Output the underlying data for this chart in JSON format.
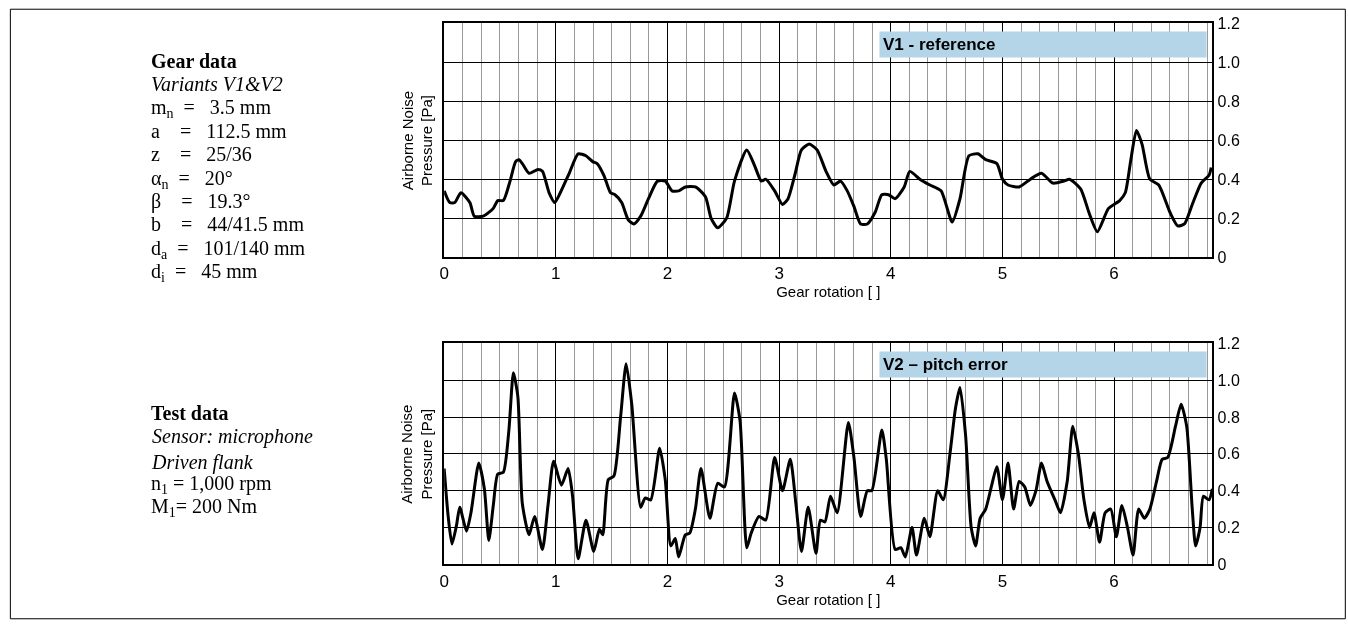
{
  "chart_data": [
    {
      "type": "other",
      "title": "Gear data",
      "subtitle": "Variants V1&V2",
      "annotations": [
        "m$_{n}$  =   3.5 mm",
        "a    =   112.5 mm",
        "z    =   25/36",
        "α$_{n}$  =   20°",
        "β    =   19.3°",
        "b    =   44/41.5 mm",
        "d$_{a}$  =   101/140 mm",
        "d$_{i}$  =   45 mm"
      ]
    },
    {
      "type": "other",
      "title": "Test data",
      "subtitle": "Sensor: microphone\nDriven flank",
      "annotations": [
        "n$_{1}$ = 1,000 rpm",
        "M$_{1}$= 200 Nm"
      ]
    },
    {
      "type": "line",
      "xlabel": "Gear rotation [ ]",
      "ylabel": "Airborne Noise\nPressure [Pa]",
      "annotations": [
        "V1 - reference"
      ],
      "grid": true,
      "xlim": [
        0,
        6.88
      ],
      "ylim": [
        0,
        1.2
      ],
      "yticks": [
        0,
        0.2,
        0.4,
        0.6,
        0.8,
        {
          "value": 1.0,
          "label": "1.0"
        },
        1.2
      ],
      "xticks": [
        0,
        {
          "value": 0.167,
          "label": null
        },
        {
          "value": 0.333,
          "label": null
        },
        {
          "value": 0.5,
          "label": null
        },
        {
          "value": 0.667,
          "label": null
        },
        {
          "value": 0.833,
          "label": null
        },
        1,
        {
          "value": 1.167,
          "label": null
        },
        {
          "value": 1.333,
          "label": null
        },
        {
          "value": 1.5,
          "label": null
        },
        {
          "value": 1.667,
          "label": null
        },
        {
          "value": 1.833,
          "label": null
        },
        2,
        {
          "value": 2.167,
          "label": null
        },
        {
          "value": 2.333,
          "label": null
        },
        {
          "value": 2.5,
          "label": null
        },
        {
          "value": 2.667,
          "label": null
        },
        {
          "value": 2.833,
          "label": null
        },
        3,
        {
          "value": 3.167,
          "label": null
        },
        {
          "value": 3.333,
          "label": null
        },
        {
          "value": 3.5,
          "label": null
        },
        {
          "value": 3.667,
          "label": null
        },
        {
          "value": 3.833,
          "label": null
        },
        4,
        {
          "value": 4.167,
          "label": null
        },
        {
          "value": 4.333,
          "label": null
        },
        {
          "value": 4.5,
          "label": null
        },
        {
          "value": 4.667,
          "label": null
        },
        {
          "value": 4.833,
          "label": null
        },
        5,
        {
          "value": 5.167,
          "label": null
        },
        {
          "value": 5.333,
          "label": null
        },
        {
          "value": 5.5,
          "label": null
        },
        {
          "value": 5.667,
          "label": null
        },
        {
          "value": 5.833,
          "label": null
        },
        6,
        {
          "value": 6.167,
          "label": null
        },
        {
          "value": 6.333,
          "label": null
        },
        {
          "value": 6.5,
          "label": null
        },
        {
          "value": 6.667,
          "label": null
        },
        {
          "value": 6.833,
          "label": null
        }
      ],
      "series": [
        {
          "color": "#000000",
          "x": [
            0,
            0.05,
            0.095,
            0.15,
            0.23,
            0.27,
            0.35,
            0.44,
            0.48,
            0.53,
            0.59,
            0.64,
            0.67,
            0.7,
            0.76,
            0.84,
            0.88,
            0.94,
            0.99,
            1.04,
            1.12,
            1.2,
            1.27,
            1.33,
            1.37,
            1.43,
            1.49,
            1.53,
            1.59,
            1.65,
            1.7,
            1.76,
            1.83,
            1.91,
            1.98,
            2.04,
            2.1,
            2.16,
            2.25,
            2.34,
            2.39,
            2.45,
            2.53,
            2.6,
            2.71,
            2.78,
            2.84,
            2.88,
            2.96,
            3.03,
            3.08,
            3.14,
            3.2,
            3.27,
            3.34,
            3.42,
            3.49,
            3.55,
            3.61,
            3.67,
            3.73,
            3.79,
            3.86,
            3.92,
            3.98,
            4.04,
            4.12,
            4.17,
            4.26,
            4.35,
            4.45,
            4.55,
            4.62,
            4.7,
            4.78,
            4.85,
            4.95,
            5.0,
            5.05,
            5.15,
            5.25,
            5.35,
            5.45,
            5.55,
            5.6,
            5.7,
            5.78,
            5.85,
            5.95,
            6.05,
            6.1,
            6.15,
            6.2,
            6.25,
            6.32,
            6.4,
            6.5,
            6.57,
            6.63,
            6.7,
            6.78,
            6.85,
            6.87
          ],
          "values": [
            0.34,
            0.28,
            0.28,
            0.33,
            0.28,
            0.21,
            0.21,
            0.25,
            0.29,
            0.29,
            0.39,
            0.49,
            0.5,
            0.48,
            0.43,
            0.45,
            0.44,
            0.33,
            0.28,
            0.33,
            0.43,
            0.53,
            0.52,
            0.49,
            0.48,
            0.42,
            0.33,
            0.32,
            0.28,
            0.19,
            0.17,
            0.21,
            0.3,
            0.39,
            0.39,
            0.34,
            0.34,
            0.36,
            0.36,
            0.31,
            0.2,
            0.15,
            0.2,
            0.39,
            0.55,
            0.47,
            0.39,
            0.4,
            0.34,
            0.27,
            0.3,
            0.42,
            0.55,
            0.58,
            0.55,
            0.44,
            0.37,
            0.39,
            0.34,
            0.26,
            0.17,
            0.17,
            0.23,
            0.32,
            0.32,
            0.3,
            0.36,
            0.44,
            0.4,
            0.37,
            0.34,
            0.18,
            0.3,
            0.52,
            0.53,
            0.5,
            0.48,
            0.4,
            0.37,
            0.36,
            0.4,
            0.43,
            0.38,
            0.39,
            0.4,
            0.35,
            0.22,
            0.13,
            0.25,
            0.29,
            0.33,
            0.5,
            0.65,
            0.58,
            0.4,
            0.37,
            0.23,
            0.16,
            0.17,
            0.27,
            0.38,
            0.42,
            0.46
          ]
        }
      ]
    },
    {
      "type": "line",
      "xlabel": "Gear rotation [ ]",
      "ylabel": "Airborne Noise\nPressure [Pa]",
      "annotations": [
        "V2 – pitch error"
      ],
      "grid": true,
      "xlim": [
        0,
        6.88
      ],
      "ylim": [
        0,
        1.2
      ],
      "yticks": [
        0,
        0.2,
        0.4,
        0.6,
        0.8,
        {
          "value": 1.0,
          "label": "1.0"
        },
        1.2
      ],
      "xticks": [
        0,
        {
          "value": 0.167,
          "label": null
        },
        {
          "value": 0.333,
          "label": null
        },
        {
          "value": 0.5,
          "label": null
        },
        {
          "value": 0.667,
          "label": null
        },
        {
          "value": 0.833,
          "label": null
        },
        1,
        {
          "value": 1.167,
          "label": null
        },
        {
          "value": 1.333,
          "label": null
        },
        {
          "value": 1.5,
          "label": null
        },
        {
          "value": 1.667,
          "label": null
        },
        {
          "value": 1.833,
          "label": null
        },
        2,
        {
          "value": 2.167,
          "label": null
        },
        {
          "value": 2.333,
          "label": null
        },
        {
          "value": 2.5,
          "label": null
        },
        {
          "value": 2.667,
          "label": null
        },
        {
          "value": 2.833,
          "label": null
        },
        3,
        {
          "value": 3.167,
          "label": null
        },
        {
          "value": 3.333,
          "label": null
        },
        {
          "value": 3.5,
          "label": null
        },
        {
          "value": 3.667,
          "label": null
        },
        {
          "value": 3.833,
          "label": null
        },
        4,
        {
          "value": 4.167,
          "label": null
        },
        {
          "value": 4.333,
          "label": null
        },
        {
          "value": 4.5,
          "label": null
        },
        {
          "value": 4.667,
          "label": null
        },
        {
          "value": 4.833,
          "label": null
        },
        5,
        {
          "value": 5.167,
          "label": null
        },
        {
          "value": 5.333,
          "label": null
        },
        {
          "value": 5.5,
          "label": null
        },
        {
          "value": 5.667,
          "label": null
        },
        {
          "value": 5.833,
          "label": null
        },
        6,
        {
          "value": 6.167,
          "label": null
        },
        {
          "value": 6.333,
          "label": null
        },
        {
          "value": 6.5,
          "label": null
        },
        {
          "value": 6.667,
          "label": null
        },
        {
          "value": 6.833,
          "label": null
        }
      ],
      "series": [
        {
          "color": "#000000",
          "x": [
            0,
            0.036,
            0.07,
            0.11,
            0.14,
            0.2,
            0.24,
            0.31,
            0.36,
            0.4,
            0.44,
            0.48,
            0.53,
            0.58,
            0.62,
            0.66,
            0.7,
            0.76,
            0.81,
            0.88,
            0.93,
            0.98,
            1.05,
            1.11,
            1.15,
            1.2,
            1.27,
            1.34,
            1.39,
            1.42,
            1.47,
            1.52,
            1.58,
            1.63,
            1.68,
            1.76,
            1.8,
            1.85,
            1.93,
            1.98,
            2.03,
            2.07,
            2.1,
            2.16,
            2.2,
            2.25,
            2.3,
            2.38,
            2.45,
            2.51,
            2.6,
            2.65,
            2.71,
            2.75,
            2.82,
            2.88,
            2.96,
            3.03,
            3.1,
            3.15,
            3.2,
            3.26,
            3.33,
            3.37,
            3.41,
            3.46,
            3.52,
            3.62,
            3.67,
            3.73,
            3.79,
            3.83,
            3.92,
            3.96,
            4.04,
            4.09,
            4.13,
            4.19,
            4.23,
            4.3,
            4.35,
            4.42,
            4.47,
            4.53,
            4.58,
            4.62,
            4.67,
            4.72,
            4.76,
            4.8,
            4.85,
            4.9,
            4.95,
            5.0,
            5.05,
            5.1,
            5.15,
            5.2,
            5.25,
            5.3,
            5.35,
            5.4,
            5.47,
            5.52,
            5.58,
            5.63,
            5.68,
            5.73,
            5.78,
            5.82,
            5.87,
            5.92,
            5.97,
            6.02,
            6.07,
            6.12,
            6.17,
            6.22,
            6.27,
            6.32,
            6.38,
            6.43,
            6.48,
            6.55,
            6.6,
            6.65,
            6.7,
            6.73,
            6.77,
            6.8,
            6.85,
            6.88
          ],
          "values": [
            0.52,
            0.26,
            0.11,
            0.21,
            0.31,
            0.18,
            0.28,
            0.55,
            0.41,
            0.13,
            0.32,
            0.49,
            0.5,
            0.73,
            1.04,
            0.91,
            0.33,
            0.16,
            0.26,
            0.08,
            0.32,
            0.56,
            0.43,
            0.52,
            0.37,
            0.03,
            0.24,
            0.07,
            0.19,
            0.16,
            0.46,
            0.48,
            0.8,
            1.09,
            0.87,
            0.31,
            0.36,
            0.35,
            0.63,
            0.46,
            0.1,
            0.14,
            0.04,
            0.16,
            0.17,
            0.3,
            0.52,
            0.25,
            0.44,
            0.42,
            0.93,
            0.78,
            0.09,
            0.17,
            0.26,
            0.24,
            0.58,
            0.4,
            0.57,
            0.33,
            0.07,
            0.31,
            0.06,
            0.24,
            0.23,
            0.37,
            0.28,
            0.77,
            0.58,
            0.26,
            0.4,
            0.4,
            0.73,
            0.57,
            0.08,
            0.09,
            0.04,
            0.2,
            0.05,
            0.25,
            0.15,
            0.4,
            0.35,
            0.6,
            0.85,
            0.96,
            0.7,
            0.2,
            0.1,
            0.25,
            0.3,
            0.42,
            0.53,
            0.35,
            0.55,
            0.3,
            0.45,
            0.42,
            0.32,
            0.4,
            0.55,
            0.45,
            0.35,
            0.28,
            0.45,
            0.75,
            0.6,
            0.35,
            0.2,
            0.28,
            0.12,
            0.28,
            0.3,
            0.15,
            0.32,
            0.2,
            0.05,
            0.3,
            0.25,
            0.3,
            0.45,
            0.57,
            0.58,
            0.75,
            0.87,
            0.75,
            0.3,
            0.1,
            0.2,
            0.37,
            0.35,
            0.41
          ]
        }
      ]
    }
  ]
}
